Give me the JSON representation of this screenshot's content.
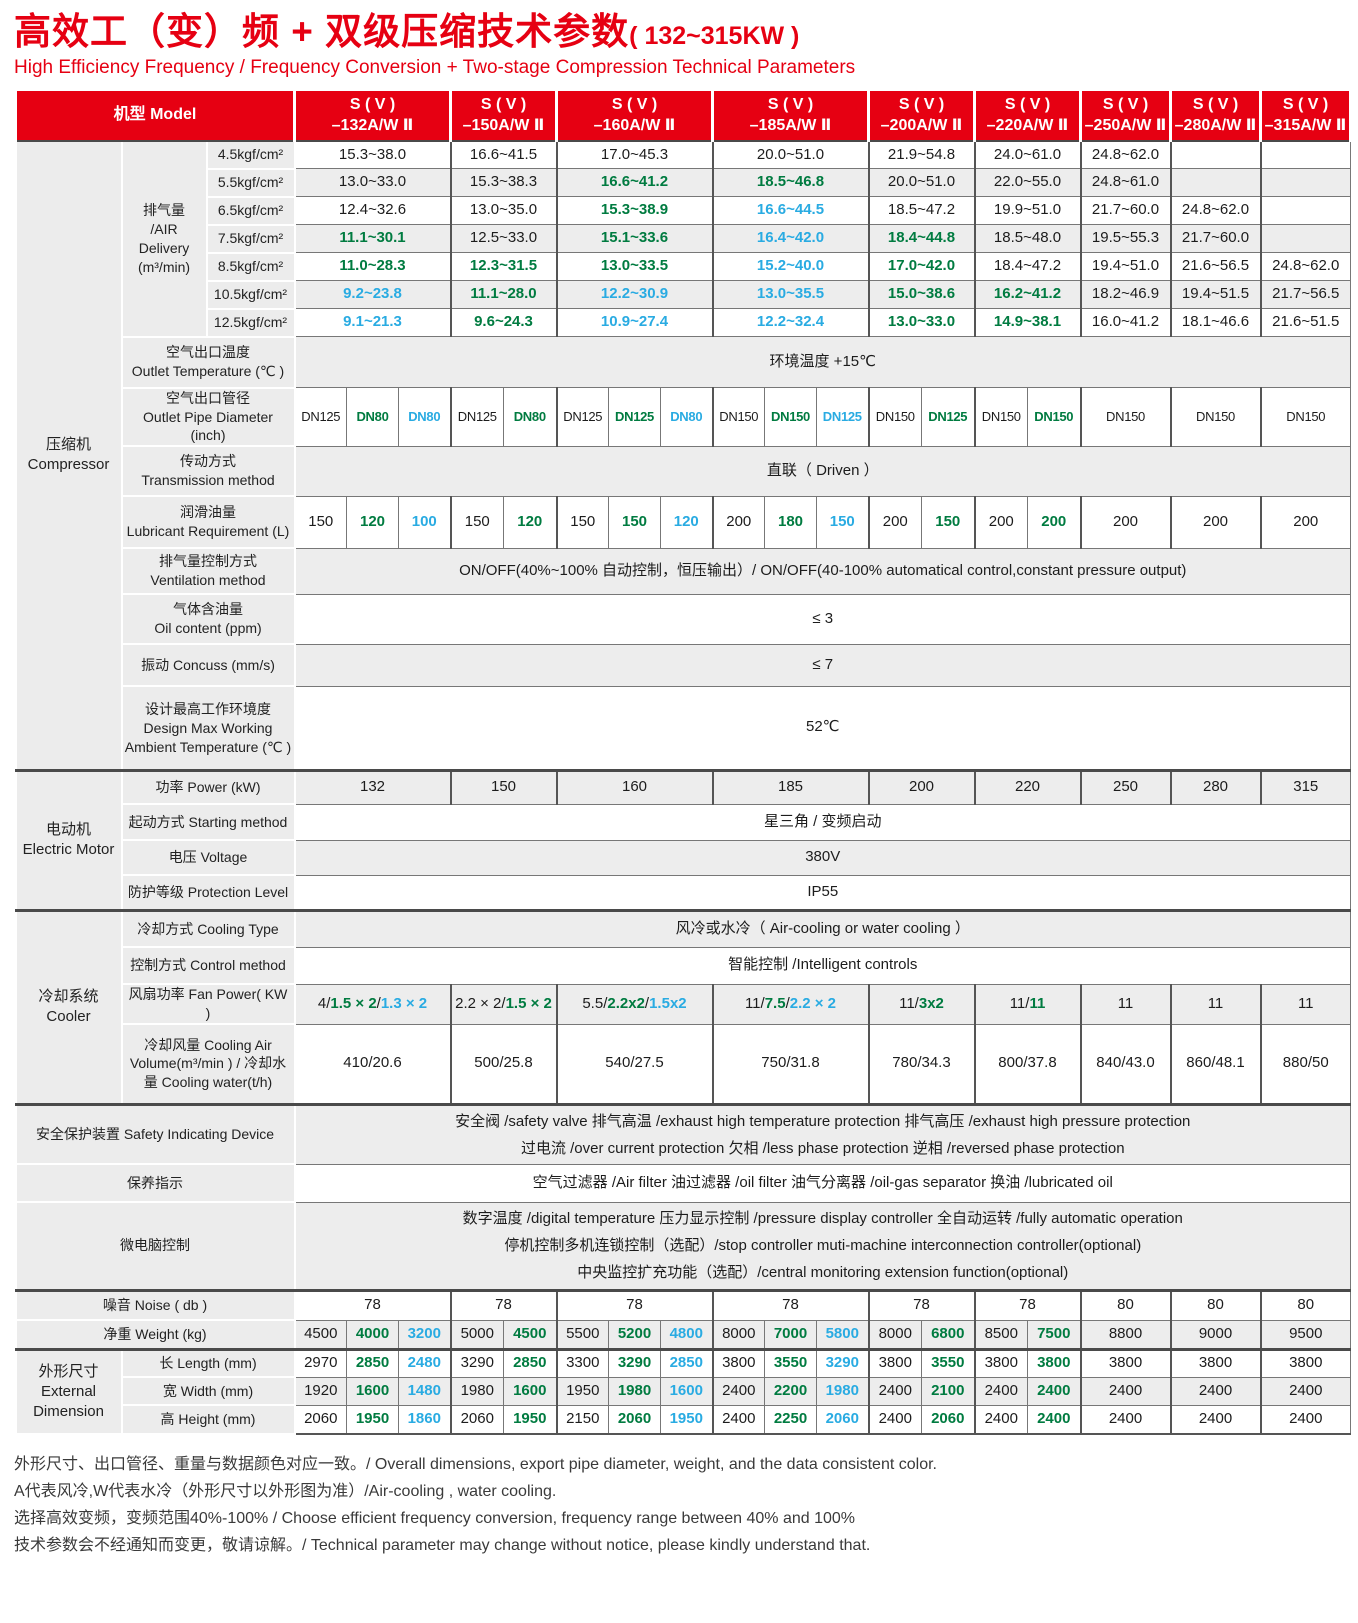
{
  "title": {
    "zh": "高效工（变）频 + 双级压缩技术参数",
    "range": "( 132~315KW )",
    "en": "High Efficiency Frequency / Frequency Conversion + Two-stage Compression Technical Parameters"
  },
  "colors": {
    "red": "#e60012",
    "green": "#007b40",
    "blue": "#29abe2",
    "ink": "#1c1c1c"
  },
  "table": {
    "model_header": "机型 Model",
    "models": [
      {
        "name": "S ( V )\n–132A/W Ⅱ",
        "sub": 3
      },
      {
        "name": "S ( V )\n–150A/W Ⅱ",
        "sub": 2
      },
      {
        "name": "S ( V )\n–160A/W Ⅱ",
        "sub": 3
      },
      {
        "name": "S ( V )\n–185A/W Ⅱ",
        "sub": 3
      },
      {
        "name": "S ( V )\n–200A/W Ⅱ",
        "sub": 2
      },
      {
        "name": "S ( V )\n–220A/W Ⅱ",
        "sub": 2
      },
      {
        "name": "S ( V )\n–250A/W Ⅱ",
        "sub": 1
      },
      {
        "name": "S ( V )\n–280A/W Ⅱ",
        "sub": 1
      },
      {
        "name": "S ( V )\n–315A/W Ⅱ",
        "sub": 1
      }
    ],
    "groups": {
      "compressor": "压缩机\nCompressor",
      "motor": "电动机\nElectric Motor",
      "cooler": "冷却系统\nCooler",
      "dimension": "外形尺寸\nExternal\nDimension"
    },
    "labels": {
      "air": "排气量\n/AIR\nDelivery\n(m³/min)",
      "outlet_temp": "空气出口温度\nOutlet Temperature (℃ )",
      "pipe": "空气出口管径\nOutlet Pipe Diameter (inch)",
      "transmission": "传动方式\nTransmission method",
      "lubricant": "润滑油量\nLubricant Requirement (L)",
      "ventilation": "排气量控制方式\nVentilation method",
      "oil": "气体含油量\nOil content (ppm)",
      "concuss": "振动 Concuss (mm/s)",
      "design": "设计最高工作环境度\nDesign Max Working\nAmbient Temperature (℃ )",
      "power": "功率 Power (kW)",
      "starting": "起动方式 Starting method",
      "voltage": "电压 Voltage",
      "protection": "防护等级 Protection Level",
      "cooling_type": "冷却方式 Cooling Type",
      "control": "控制方式 Control method",
      "fan": "风扇功率 Fan Power( KW )",
      "volume": "冷却风量 Cooling Air\nVolume(m³/min ) / 冷却水\n量 Cooling water(t/h)",
      "safety": "安全保护装置 Safety Indicating Device",
      "maintenance": "保养指示",
      "micro": "微电脑控制",
      "noise": "噪音 Noise ( db )",
      "weight": "净重 Weight (kg)",
      "length": "长 Length  (mm)",
      "width": "宽 Width  (mm)",
      "height": "高 Height  (mm)"
    },
    "air": {
      "pressures": [
        "4.5kgf/cm²",
        "5.5kgf/cm²",
        "6.5kgf/cm²",
        "7.5kgf/cm²",
        "8.5kgf/cm²",
        "10.5kgf/cm²",
        "12.5kgf/cm²"
      ],
      "values": [
        [
          {
            "t": "15.3~38.0"
          },
          {
            "t": "16.6~41.5"
          },
          {
            "t": "17.0~45.3"
          },
          {
            "t": "20.0~51.0"
          },
          {
            "t": "21.9~54.8"
          },
          {
            "t": "24.0~61.0"
          },
          {
            "t": "24.8~62.0"
          },
          {
            "t": ""
          },
          {
            "t": ""
          }
        ],
        [
          {
            "t": "13.0~33.0"
          },
          {
            "t": "15.3~38.3"
          },
          {
            "t": "16.6~41.2",
            "c": "g"
          },
          {
            "t": "18.5~46.8",
            "c": "g"
          },
          {
            "t": "20.0~51.0"
          },
          {
            "t": "22.0~55.0"
          },
          {
            "t": "24.8~61.0"
          },
          {
            "t": ""
          },
          {
            "t": ""
          }
        ],
        [
          {
            "t": "12.4~32.6"
          },
          {
            "t": "13.0~35.0"
          },
          {
            "t": "15.3~38.9",
            "c": "g"
          },
          {
            "t": "16.6~44.5",
            "c": "b"
          },
          {
            "t": "18.5~47.2"
          },
          {
            "t": "19.9~51.0"
          },
          {
            "t": "21.7~60.0"
          },
          {
            "t": "24.8~62.0"
          },
          {
            "t": ""
          }
        ],
        [
          {
            "t": "11.1~30.1",
            "c": "g"
          },
          {
            "t": "12.5~33.0"
          },
          {
            "t": "15.1~33.6",
            "c": "g"
          },
          {
            "t": "16.4~42.0",
            "c": "b"
          },
          {
            "t": "18.4~44.8",
            "c": "g"
          },
          {
            "t": "18.5~48.0"
          },
          {
            "t": "19.5~55.3"
          },
          {
            "t": "21.7~60.0"
          },
          {
            "t": ""
          }
        ],
        [
          {
            "t": "11.0~28.3",
            "c": "g"
          },
          {
            "t": "12.3~31.5",
            "c": "g"
          },
          {
            "t": "13.0~33.5",
            "c": "g"
          },
          {
            "t": "15.2~40.0",
            "c": "b"
          },
          {
            "t": "17.0~42.0",
            "c": "g"
          },
          {
            "t": "18.4~47.2"
          },
          {
            "t": "19.4~51.0"
          },
          {
            "t": "21.6~56.5"
          },
          {
            "t": "24.8~62.0"
          }
        ],
        [
          {
            "t": "9.2~23.8",
            "c": "b"
          },
          {
            "t": "11.1~28.0",
            "c": "g"
          },
          {
            "t": "12.2~30.9",
            "c": "b"
          },
          {
            "t": "13.0~35.5",
            "c": "b"
          },
          {
            "t": "15.0~38.6",
            "c": "g"
          },
          {
            "t": "16.2~41.2",
            "c": "g"
          },
          {
            "t": "18.2~46.9"
          },
          {
            "t": "19.4~51.5"
          },
          {
            "t": "21.7~56.5"
          }
        ],
        [
          {
            "t": "9.1~21.3",
            "c": "b"
          },
          {
            "t": "9.6~24.3",
            "c": "g"
          },
          {
            "t": "10.9~27.4",
            "c": "b"
          },
          {
            "t": "12.2~32.4",
            "c": "b"
          },
          {
            "t": "13.0~33.0",
            "c": "g"
          },
          {
            "t": "14.9~38.1",
            "c": "g"
          },
          {
            "t": "16.0~41.2"
          },
          {
            "t": "18.1~46.6"
          },
          {
            "t": "21.6~51.5"
          }
        ]
      ]
    },
    "span_values": {
      "outlet_temp": "环境温度 +15℃",
      "transmission": "直联（ Driven ）",
      "ventilation": "ON/OFF(40%~100% 自动控制，恒压输出）/ ON/OFF(40-100% automatical control,constant pressure output)",
      "oil": "≤ 3",
      "concuss": "≤ 7",
      "design": "52℃",
      "starting": "星三角 / 变频启动",
      "voltage": "380V",
      "protection": "IP55",
      "cooling_type": "风冷或水冷（ Air-cooling or water cooling ）",
      "control": "智能控制 /Intelligent controls",
      "safety": "安全阀 /safety valve  排气高温 /exhaust high temperature protection  排气高压 /exhaust high pressure protection\n过电流 /over current protection  欠相 /less phase protection  逆相 /reversed phase  protection",
      "maintenance": "空气过滤器 /Air filter  油过滤器 /oil filter   油气分离器 /oil-gas separator  换油 /lubricated oil",
      "micro": "数字温度 /digital temperature  压力显示控制 /pressure display controller  全自动运转 /fully automatic operation\n停机控制多机连锁控制（选配）/stop controller muti-machine interconnection controller(optional)\n中央监控扩充功能（选配）/central monitoring extension function(optional)"
    },
    "pipe": [
      {
        "t": "DN125"
      },
      {
        "t": "DN80",
        "c": "g"
      },
      {
        "t": "DN80",
        "c": "b"
      },
      {
        "t": "DN125"
      },
      {
        "t": "DN80",
        "c": "g"
      },
      {
        "t": "DN125"
      },
      {
        "t": "DN125",
        "c": "g"
      },
      {
        "t": "DN80",
        "c": "b"
      },
      {
        "t": "DN150"
      },
      {
        "t": "DN150",
        "c": "g"
      },
      {
        "t": "DN125",
        "c": "b"
      },
      {
        "t": "DN150"
      },
      {
        "t": "DN125",
        "c": "g"
      },
      {
        "t": "DN150"
      },
      {
        "t": "DN150",
        "c": "g"
      },
      {
        "t": "DN150"
      },
      {
        "t": "DN150"
      },
      {
        "t": "DN150"
      }
    ],
    "lubricant": [
      {
        "t": "150"
      },
      {
        "t": "120",
        "c": "g"
      },
      {
        "t": "100",
        "c": "b"
      },
      {
        "t": "150"
      },
      {
        "t": "120",
        "c": "g"
      },
      {
        "t": "150"
      },
      {
        "t": "150",
        "c": "g"
      },
      {
        "t": "120",
        "c": "b"
      },
      {
        "t": "200"
      },
      {
        "t": "180",
        "c": "g"
      },
      {
        "t": "150",
        "c": "b"
      },
      {
        "t": "200"
      },
      {
        "t": "150",
        "c": "g"
      },
      {
        "t": "200"
      },
      {
        "t": "200",
        "c": "g"
      },
      {
        "t": "200"
      },
      {
        "t": "200"
      },
      {
        "t": "200"
      }
    ],
    "power": [
      "132",
      "150",
      "160",
      "185",
      "200",
      "220",
      "250",
      "280",
      "315"
    ],
    "fan": [
      [
        [
          "4/",
          "k"
        ],
        [
          "1.5 × 2",
          "g"
        ],
        [
          "/",
          "k"
        ],
        [
          "1.3 × 2",
          "b"
        ]
      ],
      [
        [
          "2.2 × 2/",
          "k"
        ],
        [
          "1.5 × 2",
          "g"
        ]
      ],
      [
        [
          "5.5/",
          "k"
        ],
        [
          "2.2x2",
          "g"
        ],
        [
          "/",
          "k"
        ],
        [
          "1.5x2",
          "b"
        ]
      ],
      [
        [
          "11/",
          "k"
        ],
        [
          "7.5",
          "g"
        ],
        [
          "/",
          "k"
        ],
        [
          "2.2 × 2",
          "b"
        ]
      ],
      [
        [
          "11/",
          "k"
        ],
        [
          "3x2",
          "g"
        ]
      ],
      [
        [
          "11/",
          "k"
        ],
        [
          "11",
          "g"
        ]
      ],
      [
        [
          "11",
          "k"
        ]
      ],
      [
        [
          "11",
          "k"
        ]
      ],
      [
        [
          "11",
          "k"
        ]
      ]
    ],
    "volume": [
      "410/20.6",
      "500/25.8",
      "540/27.5",
      "750/31.8",
      "780/34.3",
      "800/37.8",
      "840/43.0",
      "860/48.1",
      "880/50"
    ],
    "noise": [
      "78",
      "78",
      "78",
      "78",
      "78",
      "78",
      "80",
      "80",
      "80"
    ],
    "weight": [
      {
        "t": "4500"
      },
      {
        "t": "4000",
        "c": "g"
      },
      {
        "t": "3200",
        "c": "b"
      },
      {
        "t": "5000"
      },
      {
        "t": "4500",
        "c": "g"
      },
      {
        "t": "5500"
      },
      {
        "t": "5200",
        "c": "g"
      },
      {
        "t": "4800",
        "c": "b"
      },
      {
        "t": "8000"
      },
      {
        "t": "7000",
        "c": "g"
      },
      {
        "t": "5800",
        "c": "b"
      },
      {
        "t": "8000"
      },
      {
        "t": "6800",
        "c": "g"
      },
      {
        "t": "8500"
      },
      {
        "t": "7500",
        "c": "g"
      },
      {
        "t": "8800"
      },
      {
        "t": "9000"
      },
      {
        "t": "9500"
      }
    ],
    "length": [
      {
        "t": "2970"
      },
      {
        "t": "2850",
        "c": "g"
      },
      {
        "t": "2480",
        "c": "b"
      },
      {
        "t": "3290"
      },
      {
        "t": "2850",
        "c": "g"
      },
      {
        "t": "3300"
      },
      {
        "t": "3290",
        "c": "g"
      },
      {
        "t": "2850",
        "c": "b"
      },
      {
        "t": "3800"
      },
      {
        "t": "3550",
        "c": "g"
      },
      {
        "t": "3290",
        "c": "b"
      },
      {
        "t": "3800"
      },
      {
        "t": "3550",
        "c": "g"
      },
      {
        "t": "3800"
      },
      {
        "t": "3800",
        "c": "g"
      },
      {
        "t": "3800"
      },
      {
        "t": "3800"
      },
      {
        "t": "3800"
      }
    ],
    "width": [
      {
        "t": "1920"
      },
      {
        "t": "1600",
        "c": "g"
      },
      {
        "t": "1480",
        "c": "b"
      },
      {
        "t": "1980"
      },
      {
        "t": "1600",
        "c": "g"
      },
      {
        "t": "1950"
      },
      {
        "t": "1980",
        "c": "g"
      },
      {
        "t": "1600",
        "c": "b"
      },
      {
        "t": "2400"
      },
      {
        "t": "2200",
        "c": "g"
      },
      {
        "t": "1980",
        "c": "b"
      },
      {
        "t": "2400"
      },
      {
        "t": "2100",
        "c": "g"
      },
      {
        "t": "2400"
      },
      {
        "t": "2400",
        "c": "g"
      },
      {
        "t": "2400"
      },
      {
        "t": "2400"
      },
      {
        "t": "2400"
      }
    ],
    "height": [
      {
        "t": "2060"
      },
      {
        "t": "1950",
        "c": "g"
      },
      {
        "t": "1860",
        "c": "b"
      },
      {
        "t": "2060"
      },
      {
        "t": "1950",
        "c": "g"
      },
      {
        "t": "2150"
      },
      {
        "t": "2060",
        "c": "g"
      },
      {
        "t": "1950",
        "c": "b"
      },
      {
        "t": "2400"
      },
      {
        "t": "2250",
        "c": "g"
      },
      {
        "t": "2060",
        "c": "b"
      },
      {
        "t": "2400"
      },
      {
        "t": "2060",
        "c": "g"
      },
      {
        "t": "2400"
      },
      {
        "t": "2400",
        "c": "g"
      },
      {
        "t": "2400"
      },
      {
        "t": "2400"
      },
      {
        "t": "2400"
      }
    ]
  },
  "notes": [
    "外形尺寸、出口管径、重量与数据颜色对应一致。/ Overall dimensions, export pipe diameter, weight, and the data consistent color.",
    "A代表风冷,W代表水冷（外形尺寸以外形图为准）/Air-cooling , water cooling.",
    "选择高效变频，变频范围40%-100% / Choose efficient frequency conversion, frequency range between 40% and 100%",
    "技术参数会不经通知而变更，敬请谅解。/ Technical parameter may change without notice, please kindly understand that."
  ]
}
